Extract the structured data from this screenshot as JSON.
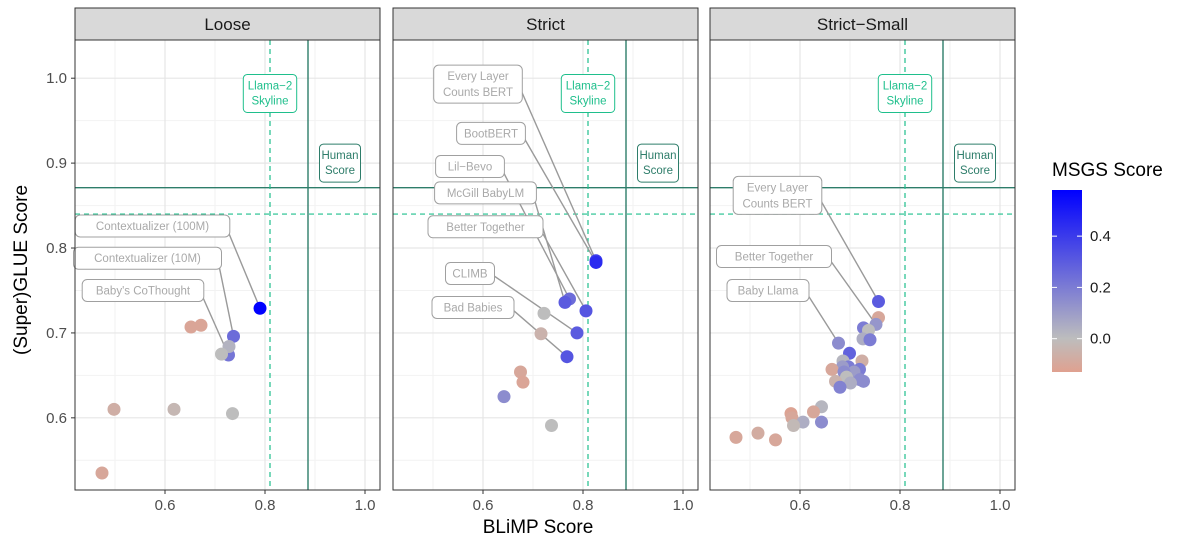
{
  "chart_data": {
    "type": "scatter",
    "xlabel": "BLiMP Score",
    "ylabel": "(Super)GLUE Score",
    "xlim": [
      0.42,
      1.03
    ],
    "ylim": [
      0.515,
      1.045
    ],
    "x_ticks": [
      "0.6",
      "0.8",
      "1.0"
    ],
    "x_tick_values": [
      0.6,
      0.8,
      1.0
    ],
    "y_ticks": [
      "0.6",
      "0.7",
      "0.8",
      "0.9",
      "1.0"
    ],
    "y_tick_values": [
      0.6,
      0.7,
      0.8,
      0.9,
      1.0
    ],
    "grid": true,
    "legend": {
      "title": "MSGS Score",
      "placement": "right",
      "ticks": [
        "0.4",
        "0.2",
        "0.0"
      ],
      "tick_values": [
        0.4,
        0.2,
        0.0
      ],
      "range": [
        -0.13,
        0.58
      ]
    },
    "colors": {
      "low": "#dfa190",
      "mid": "#bdbdbd",
      "high": "#0000ff",
      "reference": "#2e7d6a",
      "skyline": "#1fbf8c",
      "label_text": "#a9a9a9"
    },
    "reference_lines": {
      "human": {
        "label": "Human\nScore",
        "x": 0.886,
        "y": 0.871
      },
      "skyline": {
        "label": "Llama−2\nSkyline",
        "x": 0.81,
        "y": 0.84
      }
    },
    "panels": [
      {
        "title": "Loose",
        "points": [
          {
            "x": 0.79,
            "y": 0.729,
            "c": 0.58
          },
          {
            "x": 0.737,
            "y": 0.696,
            "c": 0.25
          },
          {
            "x": 0.727,
            "y": 0.674,
            "c": 0.22
          },
          {
            "x": 0.728,
            "y": 0.684,
            "c": 0.03
          },
          {
            "x": 0.713,
            "y": 0.675,
            "c": 0.0
          },
          {
            "x": 0.672,
            "y": 0.709,
            "c": -0.11
          },
          {
            "x": 0.652,
            "y": 0.707,
            "c": -0.11
          },
          {
            "x": 0.735,
            "y": 0.605,
            "c": 0.0
          },
          {
            "x": 0.618,
            "y": 0.61,
            "c": -0.03
          },
          {
            "x": 0.498,
            "y": 0.61,
            "c": -0.07
          },
          {
            "x": 0.474,
            "y": 0.535,
            "c": -0.1
          }
        ],
        "labels": [
          {
            "text": "Contextualizer (100M)",
            "x": 0.575,
            "y": 0.826,
            "tx": 0.79,
            "ty": 0.729
          },
          {
            "text": "Contextualizer (10M)",
            "x": 0.565,
            "y": 0.788,
            "tx": 0.737,
            "ty": 0.696
          },
          {
            "text": "Baby's CoThought",
            "x": 0.556,
            "y": 0.75,
            "tx": 0.727,
            "ty": 0.674
          }
        ]
      },
      {
        "title": "Strict",
        "points": [
          {
            "x": 0.826,
            "y": 0.785,
            "c": 0.4
          },
          {
            "x": 0.826,
            "y": 0.783,
            "c": 0.45
          },
          {
            "x": 0.773,
            "y": 0.74,
            "c": 0.25
          },
          {
            "x": 0.764,
            "y": 0.736,
            "c": 0.3
          },
          {
            "x": 0.806,
            "y": 0.726,
            "c": 0.32
          },
          {
            "x": 0.788,
            "y": 0.7,
            "c": 0.3
          },
          {
            "x": 0.768,
            "y": 0.672,
            "c": 0.32
          },
          {
            "x": 0.722,
            "y": 0.723,
            "c": 0.0
          },
          {
            "x": 0.716,
            "y": 0.699,
            "c": -0.05
          },
          {
            "x": 0.675,
            "y": 0.654,
            "c": -0.1
          },
          {
            "x": 0.68,
            "y": 0.642,
            "c": -0.11
          },
          {
            "x": 0.642,
            "y": 0.625,
            "c": 0.15
          },
          {
            "x": 0.737,
            "y": 0.591,
            "c": 0.0
          }
        ],
        "labels": [
          {
            "text": "Every Layer\nCounts BERT",
            "x": 0.59,
            "y": 0.993,
            "tx": 0.826,
            "ty": 0.785
          },
          {
            "text": "BootBERT",
            "x": 0.616,
            "y": 0.935,
            "tx": 0.826,
            "ty": 0.783
          },
          {
            "text": "Lil−Bevo",
            "x": 0.574,
            "y": 0.896,
            "tx": 0.773,
            "ty": 0.74
          },
          {
            "text": "McGill BabyLM",
            "x": 0.605,
            "y": 0.865,
            "tx": 0.764,
            "ty": 0.736
          },
          {
            "text": "Better Together",
            "x": 0.605,
            "y": 0.825,
            "tx": 0.806,
            "ty": 0.726
          },
          {
            "text": "CLIMB",
            "x": 0.574,
            "y": 0.77,
            "tx": 0.788,
            "ty": 0.7
          },
          {
            "text": "Bad Babies",
            "x": 0.58,
            "y": 0.73,
            "tx": 0.768,
            "ty": 0.672
          }
        ]
      },
      {
        "title": "Strict−Small",
        "points": [
          {
            "x": 0.757,
            "y": 0.737,
            "c": 0.3
          },
          {
            "x": 0.757,
            "y": 0.718,
            "c": -0.1
          },
          {
            "x": 0.752,
            "y": 0.71,
            "c": 0.12
          },
          {
            "x": 0.727,
            "y": 0.706,
            "c": 0.2
          },
          {
            "x": 0.737,
            "y": 0.703,
            "c": 0.0
          },
          {
            "x": 0.726,
            "y": 0.693,
            "c": 0.05
          },
          {
            "x": 0.74,
            "y": 0.692,
            "c": 0.2
          },
          {
            "x": 0.677,
            "y": 0.688,
            "c": 0.15
          },
          {
            "x": 0.699,
            "y": 0.676,
            "c": 0.28
          },
          {
            "x": 0.686,
            "y": 0.667,
            "c": 0.02
          },
          {
            "x": 0.724,
            "y": 0.667,
            "c": -0.07
          },
          {
            "x": 0.697,
            "y": 0.66,
            "c": 0.2
          },
          {
            "x": 0.685,
            "y": 0.66,
            "c": 0.1
          },
          {
            "x": 0.664,
            "y": 0.657,
            "c": -0.1
          },
          {
            "x": 0.719,
            "y": 0.657,
            "c": 0.2
          },
          {
            "x": 0.708,
            "y": 0.654,
            "c": 0.1
          },
          {
            "x": 0.688,
            "y": 0.654,
            "c": 0.15
          },
          {
            "x": 0.693,
            "y": 0.648,
            "c": 0.0
          },
          {
            "x": 0.72,
            "y": 0.645,
            "c": 0.15
          },
          {
            "x": 0.727,
            "y": 0.643,
            "c": 0.15
          },
          {
            "x": 0.671,
            "y": 0.643,
            "c": -0.05
          },
          {
            "x": 0.701,
            "y": 0.641,
            "c": 0.05
          },
          {
            "x": 0.68,
            "y": 0.636,
            "c": 0.18
          },
          {
            "x": 0.643,
            "y": 0.613,
            "c": 0.02
          },
          {
            "x": 0.627,
            "y": 0.607,
            "c": -0.1
          },
          {
            "x": 0.582,
            "y": 0.605,
            "c": -0.12
          },
          {
            "x": 0.584,
            "y": 0.6,
            "c": -0.1
          },
          {
            "x": 0.643,
            "y": 0.595,
            "c": 0.15
          },
          {
            "x": 0.606,
            "y": 0.595,
            "c": 0.05
          },
          {
            "x": 0.587,
            "y": 0.591,
            "c": -0.02
          },
          {
            "x": 0.516,
            "y": 0.582,
            "c": -0.08
          },
          {
            "x": 0.472,
            "y": 0.577,
            "c": -0.1
          },
          {
            "x": 0.551,
            "y": 0.574,
            "c": -0.1
          }
        ],
        "labels": [
          {
            "text": "Every Layer\nCounts BERT",
            "x": 0.555,
            "y": 0.862,
            "tx": 0.757,
            "ty": 0.737
          },
          {
            "text": "Better Together",
            "x": 0.548,
            "y": 0.79,
            "tx": 0.752,
            "ty": 0.71
          },
          {
            "text": "Baby Llama",
            "x": 0.536,
            "y": 0.75,
            "tx": 0.677,
            "ty": 0.688
          }
        ]
      }
    ]
  }
}
